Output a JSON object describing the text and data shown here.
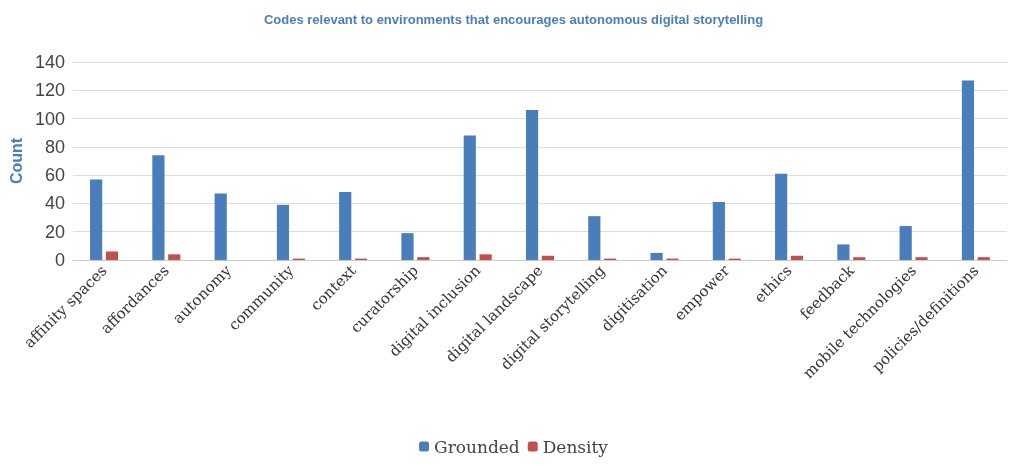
{
  "chart_data": {
    "type": "bar",
    "title": "Codes relevant to environments that encourages autonomous digital storytelling",
    "ylabel": "Count",
    "categories": [
      "affinity spaces",
      "affordances",
      "autonomy",
      "community",
      "context",
      "curatorship",
      "digital inclusion",
      "digital landscape",
      "digital storytelling",
      "digitisation",
      "empower",
      "ethics",
      "feedback",
      "mobile technologies",
      "policies/definitions"
    ],
    "series": [
      {
        "name": "Grounded",
        "color": "#4a7ebb",
        "values": [
          57,
          74,
          47,
          39,
          48,
          19,
          88,
          106,
          31,
          5,
          41,
          61,
          11,
          24,
          127
        ]
      },
      {
        "name": "Density",
        "color": "#c0504d",
        "values": [
          6,
          4,
          0,
          1,
          1,
          2,
          4,
          3,
          1,
          1,
          1,
          3,
          2,
          2,
          2
        ]
      }
    ],
    "ylim": [
      0,
      140
    ],
    "yticks": [
      0,
      20,
      40,
      60,
      80,
      100,
      120,
      140
    ],
    "grid": "y",
    "legend": "bottom"
  }
}
